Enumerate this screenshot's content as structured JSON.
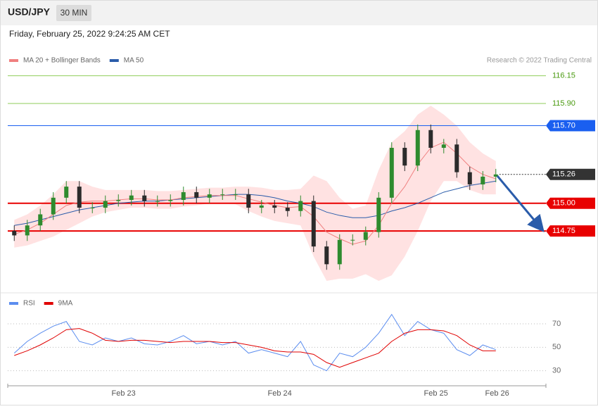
{
  "header": {
    "symbol": "USD/JPY",
    "interval": "30 MIN",
    "timestamp": "Friday, February 25, 2022 9:24:25 AM CET"
  },
  "chart_data": [
    {
      "type": "candlestick",
      "credit": "Research © 2022 Trading Central",
      "x": [
        1,
        3,
        5,
        7,
        9,
        11,
        13,
        15,
        17,
        19,
        21,
        23,
        25,
        27,
        29,
        31,
        33,
        35,
        37,
        39,
        41,
        43,
        45,
        47,
        49,
        51,
        53,
        55,
        57,
        59,
        61,
        63,
        65,
        67,
        69,
        71,
        73,
        75
      ],
      "open": [
        114.75,
        114.71,
        114.8,
        114.9,
        115.05,
        115.15,
        114.96,
        114.96,
        115.02,
        115.03,
        115.07,
        115.02,
        115.02,
        115.03,
        115.1,
        115.05,
        115.08,
        115.08,
        115.08,
        114.96,
        114.98,
        114.96,
        114.93,
        115.02,
        114.61,
        114.45,
        114.67,
        114.67,
        114.74,
        115.05,
        115.5,
        115.34,
        115.66,
        115.5,
        115.53,
        115.28,
        115.17,
        115.24
      ],
      "high": [
        114.8,
        114.85,
        114.95,
        115.1,
        115.2,
        115.2,
        115.01,
        115.07,
        115.08,
        115.12,
        115.12,
        115.07,
        115.08,
        115.15,
        115.15,
        115.13,
        115.13,
        115.13,
        115.13,
        115.03,
        115.03,
        115.01,
        115.07,
        115.07,
        114.66,
        114.72,
        114.72,
        114.79,
        115.1,
        115.55,
        115.55,
        115.71,
        115.71,
        115.58,
        115.58,
        115.33,
        115.29,
        115.31
      ],
      "low": [
        114.66,
        114.66,
        114.75,
        114.85,
        115.0,
        114.91,
        114.91,
        114.91,
        114.97,
        114.98,
        114.97,
        114.97,
        114.97,
        114.98,
        115.0,
        115.0,
        115.03,
        115.03,
        114.91,
        114.91,
        114.91,
        114.88,
        114.88,
        114.56,
        114.4,
        114.4,
        114.62,
        114.62,
        114.69,
        115.0,
        115.29,
        115.29,
        115.45,
        115.45,
        115.23,
        115.12,
        115.12,
        115.19
      ],
      "close": [
        114.71,
        114.8,
        114.9,
        115.05,
        115.15,
        114.96,
        114.96,
        115.02,
        115.03,
        115.07,
        115.02,
        115.02,
        115.03,
        115.1,
        115.05,
        115.08,
        115.08,
        115.08,
        114.96,
        114.98,
        114.96,
        114.93,
        115.02,
        114.61,
        114.45,
        114.67,
        114.67,
        114.74,
        115.05,
        115.5,
        115.34,
        115.66,
        115.5,
        115.53,
        115.28,
        115.17,
        115.24,
        115.26
      ],
      "up_color": "#2e8b2e",
      "down_color": "#2b2b2b",
      "series": [
        {
          "name": "MA 20 + Bollinger Bands",
          "color": "#f08080",
          "values": [
            114.72,
            114.76,
            114.82,
            114.9,
            114.98,
            115.01,
            115.02,
            115.02,
            115.03,
            115.04,
            115.04,
            115.03,
            115.03,
            115.05,
            115.06,
            115.07,
            115.07,
            115.07,
            115.04,
            115.01,
            114.98,
            114.96,
            114.97,
            114.88,
            114.74,
            114.68,
            114.63,
            114.66,
            114.8,
            115.0,
            115.15,
            115.35,
            115.5,
            115.55,
            115.45,
            115.33,
            115.26,
            115.22
          ]
        },
        {
          "name": "MA 50",
          "color": "#2a5caa",
          "values": [
            114.8,
            114.82,
            114.85,
            114.88,
            114.91,
            114.94,
            114.96,
            114.98,
            115.0,
            115.01,
            115.02,
            115.02,
            115.03,
            115.04,
            115.05,
            115.06,
            115.07,
            115.08,
            115.08,
            115.07,
            115.05,
            115.02,
            115.0,
            114.97,
            114.92,
            114.89,
            114.87,
            114.87,
            114.89,
            114.93,
            114.96,
            115.0,
            115.05,
            115.1,
            115.13,
            115.16,
            115.18,
            115.2
          ]
        }
      ],
      "band": {
        "color": "#ffd6d6",
        "upper": [
          114.85,
          114.9,
          114.98,
          115.08,
          115.2,
          115.2,
          115.15,
          115.12,
          115.12,
          115.12,
          115.12,
          115.11,
          115.11,
          115.12,
          115.13,
          115.14,
          115.14,
          115.15,
          115.15,
          115.14,
          115.12,
          115.12,
          115.13,
          115.25,
          115.2,
          115.05,
          114.95,
          114.98,
          115.3,
          115.55,
          115.65,
          115.8,
          115.88,
          115.8,
          115.7,
          115.55,
          115.45,
          115.38
        ],
        "lower": [
          114.6,
          114.62,
          114.66,
          114.7,
          114.76,
          114.82,
          114.88,
          114.92,
          114.94,
          114.96,
          114.96,
          114.95,
          114.95,
          114.97,
          114.98,
          115.0,
          115.0,
          114.99,
          114.93,
          114.88,
          114.84,
          114.82,
          114.8,
          114.52,
          114.3,
          114.32,
          114.32,
          114.36,
          114.3,
          114.35,
          114.52,
          114.75,
          115.02,
          115.2,
          115.2,
          115.12,
          115.08,
          115.08
        ]
      },
      "levels": [
        {
          "value": 116.15,
          "label": "116.15",
          "color": "#8fce5a",
          "style": "plain"
        },
        {
          "value": 115.9,
          "label": "115.90",
          "color": "#8fce5a",
          "style": "plain"
        },
        {
          "value": 115.7,
          "label": "115.70",
          "color": "#1a5ff0",
          "style": "tag"
        },
        {
          "value": 115.26,
          "label": "115.26",
          "color": "#333333",
          "style": "current"
        },
        {
          "value": 115.0,
          "label": "115.00",
          "color": "#e80000",
          "style": "tag"
        },
        {
          "value": 114.75,
          "label": "114.75",
          "color": "#e80000",
          "style": "tag"
        }
      ],
      "xlim": [
        0,
        82.7
      ],
      "ylim": [
        114.23,
        116.23
      ]
    },
    {
      "type": "line",
      "x": [
        1,
        3,
        5,
        7,
        9,
        11,
        13,
        15,
        17,
        19,
        21,
        23,
        25,
        27,
        29,
        31,
        33,
        35,
        37,
        39,
        41,
        43,
        45,
        47,
        49,
        51,
        53,
        55,
        57,
        59,
        61,
        63,
        65,
        67,
        69,
        71,
        73,
        75
      ],
      "series": [
        {
          "name": "RSI",
          "color": "#5b8def",
          "values": [
            45,
            55,
            62,
            68,
            72,
            55,
            52,
            58,
            55,
            58,
            53,
            52,
            55,
            60,
            53,
            55,
            52,
            55,
            45,
            48,
            45,
            42,
            55,
            35,
            30,
            45,
            42,
            50,
            62,
            78,
            60,
            72,
            65,
            62,
            48,
            43,
            52,
            48
          ]
        },
        {
          "name": "9MA",
          "color": "#e00000",
          "values": [
            43,
            47,
            52,
            58,
            65,
            66,
            62,
            56,
            55,
            56,
            56,
            55,
            54,
            55,
            55,
            55,
            54,
            54,
            52,
            50,
            47,
            46,
            46,
            44,
            37,
            33,
            37,
            41,
            45,
            55,
            62,
            65,
            65,
            64,
            60,
            52,
            47,
            47
          ]
        }
      ],
      "xlim": [
        0,
        82.7
      ],
      "ylim": [
        22,
        82
      ],
      "yticks": [
        70,
        50,
        30
      ],
      "xticks": [
        {
          "value": 17.8,
          "label": "Feb 23"
        },
        {
          "value": 41.8,
          "label": "Feb 24"
        },
        {
          "value": 65.8,
          "label": "Feb 25"
        },
        {
          "value": 75.2,
          "label": "Feb 26"
        }
      ]
    }
  ]
}
